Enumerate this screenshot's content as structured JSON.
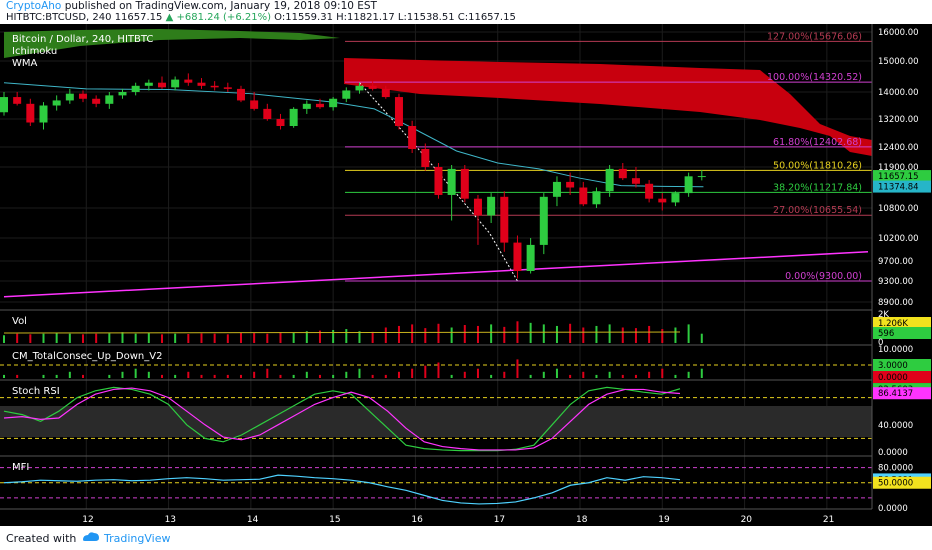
{
  "header": {
    "brand": "CryptoAho",
    "published": "published on TradingView.com, January 19, 2018 09:10 EST",
    "symbol": "HITBTC:BTCUSD, 240",
    "last": "11657.15",
    "change": "+681.24 (+6.21%)",
    "ohlc": "O:11559.31 H:11821.17 L:11538.51 C:11657.15"
  },
  "legend": {
    "title": "Bitcoin / Dollar, 240, HITBTC",
    "ind1": "Ichimoku",
    "ind2": "WMA"
  },
  "footer": {
    "created": "Created with",
    "brand": "TradingView"
  },
  "colors": {
    "bg": "#000000",
    "up": "#2ecc40",
    "down": "#e0001a",
    "cloud_bear": "#c8000e",
    "cloud_bull": "#2e7d1a",
    "wma": "#3fb6c8",
    "trend": "#ff33ff",
    "fib": "#b33a52"
  },
  "chart_data": [
    {
      "type": "candlestick",
      "ylim": [
        8700,
        16200
      ],
      "y_ticks": [
        "16000.00",
        "15000.00",
        "14000.00",
        "13200.00",
        "12400.00",
        "11900.00",
        "10800.00",
        "10200.00",
        "9700.00",
        "9300.00",
        "8900.00"
      ],
      "x_ticks": [
        "12",
        "13",
        "14",
        "15",
        "16",
        "17",
        "18",
        "19",
        "20",
        "21"
      ],
      "candles": [
        [
          11.0,
          13400,
          14000,
          13300,
          13850
        ],
        [
          11.16,
          13850,
          14000,
          13600,
          13650
        ],
        [
          11.32,
          13650,
          13800,
          13000,
          13100
        ],
        [
          11.48,
          13100,
          13700,
          12900,
          13600
        ],
        [
          11.64,
          13600,
          13900,
          13450,
          13750
        ],
        [
          11.8,
          13750,
          14100,
          13650,
          13950
        ],
        [
          11.96,
          13950,
          14050,
          13700,
          13800
        ],
        [
          12.12,
          13800,
          13900,
          13550,
          13650
        ],
        [
          12.28,
          13650,
          14000,
          13500,
          13900
        ],
        [
          12.44,
          13900,
          14100,
          13800,
          14000
        ],
        [
          12.6,
          14000,
          14300,
          13900,
          14200
        ],
        [
          12.76,
          14200,
          14400,
          14050,
          14300
        ],
        [
          12.92,
          14300,
          14500,
          14100,
          14150
        ],
        [
          13.08,
          14150,
          14500,
          14050,
          14400
        ],
        [
          13.24,
          14400,
          14600,
          14200,
          14300
        ],
        [
          13.4,
          14300,
          14450,
          14100,
          14200
        ],
        [
          13.56,
          14200,
          14350,
          14050,
          14150
        ],
        [
          13.72,
          14150,
          14300,
          14000,
          14100
        ],
        [
          13.88,
          14100,
          14200,
          13700,
          13750
        ],
        [
          14.04,
          13750,
          14000,
          13450,
          13500
        ],
        [
          14.2,
          13500,
          13650,
          13150,
          13200
        ],
        [
          14.36,
          13200,
          13350,
          12900,
          13000
        ],
        [
          14.52,
          13000,
          13550,
          12950,
          13500
        ],
        [
          14.68,
          13500,
          13750,
          13350,
          13650
        ],
        [
          14.84,
          13650,
          13800,
          13500,
          13550
        ],
        [
          15.0,
          13550,
          13850,
          13450,
          13800
        ],
        [
          15.16,
          13800,
          14150,
          13700,
          14050
        ],
        [
          15.32,
          14050,
          14300,
          13950,
          14200
        ],
        [
          15.48,
          14200,
          14350,
          14050,
          14100
        ],
        [
          15.64,
          14100,
          14200,
          13800,
          13850
        ],
        [
          15.8,
          13850,
          13950,
          12900,
          13000
        ],
        [
          15.96,
          13000,
          13150,
          12250,
          12350
        ],
        [
          16.12,
          12350,
          12500,
          11800,
          11900
        ],
        [
          16.28,
          11900,
          12000,
          11050,
          11150
        ],
        [
          16.44,
          11150,
          11950,
          10550,
          11850
        ],
        [
          16.6,
          11850,
          11950,
          10950,
          11050
        ],
        [
          16.76,
          11050,
          11150,
          10050,
          10650
        ],
        [
          16.92,
          10650,
          11200,
          10500,
          11100
        ],
        [
          17.08,
          11100,
          11250,
          9900,
          10100
        ],
        [
          17.24,
          10100,
          10250,
          9350,
          9500
        ],
        [
          17.4,
          9500,
          10200,
          9450,
          10050
        ],
        [
          17.56,
          10050,
          11200,
          9850,
          11100
        ],
        [
          17.72,
          11100,
          11650,
          10850,
          11500
        ],
        [
          17.88,
          11500,
          11750,
          11150,
          11350
        ],
        [
          18.04,
          11350,
          11500,
          10850,
          10900
        ],
        [
          18.2,
          10900,
          11350,
          10800,
          11250
        ],
        [
          18.36,
          11250,
          11950,
          11100,
          11850
        ],
        [
          18.52,
          11850,
          12000,
          11550,
          11600
        ],
        [
          18.68,
          11600,
          11900,
          11350,
          11450
        ],
        [
          18.84,
          11450,
          11550,
          10950,
          11050
        ],
        [
          19.0,
          11050,
          11200,
          10750,
          10950
        ],
        [
          19.16,
          10950,
          11250,
          10850,
          11200
        ],
        [
          19.32,
          11200,
          11750,
          11100,
          11650
        ],
        [
          19.48,
          11650,
          11820,
          11540,
          11657
        ]
      ],
      "fib_levels": [
        {
          "label": "127.00%(15676.06)",
          "value": 15676
        },
        {
          "label": "100.00%(14320.52)",
          "value": 14320
        },
        {
          "label": "61.80%(12402.68)",
          "value": 12403
        },
        {
          "label": "50.00%(11810.26)",
          "value": 11810
        },
        {
          "label": "38.20%(11217.84)",
          "value": 11218
        },
        {
          "label": "27.00%(10655.54)",
          "value": 10656
        },
        {
          "label": "0.00%(9300.00)",
          "value": 9300
        }
      ],
      "price_tags": [
        {
          "label": "11657.15",
          "value": 11657
        },
        {
          "label": "11374.84",
          "value": 11375
        }
      ],
      "wma": [
        [
          11.0,
          14300
        ],
        [
          12.0,
          14100
        ],
        [
          13.0,
          14080
        ],
        [
          14.0,
          13950
        ],
        [
          15.0,
          13700
        ],
        [
          15.5,
          13500
        ],
        [
          16.0,
          12900
        ],
        [
          16.5,
          12300
        ],
        [
          17.0,
          12000
        ],
        [
          17.5,
          11850
        ],
        [
          18.0,
          11600
        ],
        [
          18.5,
          11400
        ],
        [
          19.0,
          11380
        ],
        [
          19.5,
          11370
        ]
      ],
      "trend": [
        [
          11.0,
          9000
        ],
        [
          21.5,
          9900
        ]
      ]
    },
    {
      "type": "bar",
      "title": "Vol",
      "y_ticks": [
        "2K",
        "1.206K",
        "596",
        "0"
      ],
      "values": [
        0.25,
        0.3,
        0.28,
        0.3,
        0.32,
        0.3,
        0.28,
        0.3,
        0.31,
        0.35,
        0.3,
        0.32,
        0.28,
        0.3,
        0.29,
        0.31,
        0.3,
        0.28,
        0.33,
        0.32,
        0.3,
        0.35,
        0.33,
        0.38,
        0.4,
        0.42,
        0.45,
        0.38,
        0.36,
        0.5,
        0.55,
        0.6,
        0.48,
        0.62,
        0.5,
        0.58,
        0.55,
        0.6,
        0.52,
        0.7,
        0.65,
        0.6,
        0.55,
        0.62,
        0.5,
        0.55,
        0.6,
        0.5,
        0.48,
        0.55,
        0.45,
        0.5,
        0.6,
        0.3
      ]
    },
    {
      "type": "bar",
      "title": "CM_TotalConsec_Up_Down_V2",
      "y_ticks": [
        "10.0000",
        "3.0000",
        "0.0000"
      ],
      "values": [
        1,
        1,
        0,
        1,
        1,
        2,
        1,
        0,
        1,
        2,
        3,
        2,
        1,
        1,
        2,
        1,
        1,
        1,
        1,
        2,
        3,
        1,
        1,
        2,
        1,
        1,
        2,
        3,
        1,
        1,
        2,
        3,
        4,
        5,
        1,
        2,
        3,
        1,
        2,
        6,
        1,
        2,
        3,
        1,
        2,
        1,
        2,
        1,
        1,
        2,
        3,
        1,
        2,
        3
      ]
    },
    {
      "type": "line",
      "title": "Stoch RSI",
      "y_ticks": [
        "92.5603",
        "86.4137",
        "40.0000",
        "0.0000"
      ],
      "series": [
        {
          "values": [
            60,
            55,
            45,
            60,
            80,
            90,
            95,
            92,
            85,
            70,
            40,
            20,
            15,
            25,
            40,
            55,
            70,
            85,
            90,
            85,
            60,
            35,
            10,
            5,
            3,
            2,
            2,
            2,
            4,
            10,
            40,
            70,
            90,
            95,
            92,
            88,
            85,
            93
          ]
        },
        {
          "values": [
            50,
            52,
            48,
            50,
            70,
            85,
            92,
            94,
            90,
            80,
            60,
            40,
            22,
            18,
            25,
            40,
            55,
            70,
            80,
            88,
            80,
            60,
            35,
            15,
            8,
            5,
            3,
            3,
            3,
            6,
            20,
            45,
            70,
            85,
            92,
            92,
            88,
            86
          ]
        }
      ]
    },
    {
      "type": "line",
      "title": "MFI",
      "y_ticks": [
        "80.0000",
        "56.5681",
        "50.0000",
        "0.0000"
      ],
      "series": [
        {
          "values": [
            50,
            52,
            55,
            54,
            53,
            55,
            56,
            54,
            55,
            58,
            60,
            58,
            55,
            56,
            57,
            65,
            63,
            60,
            58,
            55,
            50,
            42,
            35,
            25,
            15,
            10,
            8,
            9,
            12,
            20,
            30,
            45,
            50,
            60,
            55,
            62,
            60,
            56
          ]
        }
      ]
    }
  ]
}
